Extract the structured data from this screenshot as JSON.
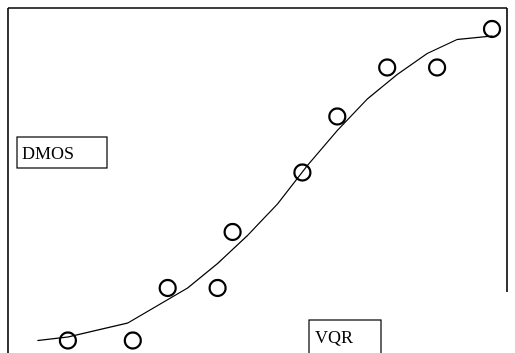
{
  "chart_data": {
    "type": "scatter",
    "xlabel": "VQR",
    "ylabel": "DMOS",
    "xlim": [
      0,
      100
    ],
    "ylim": [
      0,
      100
    ],
    "grid": false,
    "series": [
      {
        "kind": "points",
        "marker": "open-circle",
        "points": [
          {
            "x": 12,
            "y": 5
          },
          {
            "x": 25,
            "y": 5
          },
          {
            "x": 32,
            "y": 20
          },
          {
            "x": 42,
            "y": 20
          },
          {
            "x": 45,
            "y": 36
          },
          {
            "x": 59,
            "y": 53
          },
          {
            "x": 66,
            "y": 69
          },
          {
            "x": 76,
            "y": 83
          },
          {
            "x": 86,
            "y": 83
          },
          {
            "x": 97,
            "y": 94
          }
        ]
      },
      {
        "kind": "line",
        "points": [
          {
            "x": 6,
            "y": 5
          },
          {
            "x": 12,
            "y": 6
          },
          {
            "x": 18,
            "y": 8
          },
          {
            "x": 24,
            "y": 10
          },
          {
            "x": 30,
            "y": 15
          },
          {
            "x": 36,
            "y": 20
          },
          {
            "x": 42,
            "y": 27
          },
          {
            "x": 48,
            "y": 35
          },
          {
            "x": 54,
            "y": 44
          },
          {
            "x": 60,
            "y": 55
          },
          {
            "x": 66,
            "y": 65
          },
          {
            "x": 72,
            "y": 74
          },
          {
            "x": 78,
            "y": 81
          },
          {
            "x": 84,
            "y": 87
          },
          {
            "x": 90,
            "y": 91
          },
          {
            "x": 97,
            "y": 92
          }
        ]
      }
    ]
  }
}
